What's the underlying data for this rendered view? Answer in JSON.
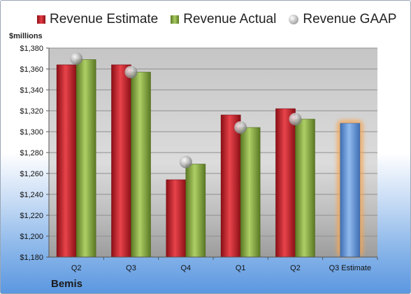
{
  "chart_data": {
    "type": "bar",
    "ylabel": "$millions",
    "ylim": [
      1180,
      1380
    ],
    "yticks": [
      1180,
      1200,
      1220,
      1240,
      1260,
      1280,
      1300,
      1320,
      1340,
      1360,
      1380
    ],
    "ytick_labels": [
      "$1,180",
      "$1,200",
      "$1,220",
      "$1,240",
      "$1,260",
      "$1,280",
      "$1,300",
      "$1,320",
      "$1,340",
      "$1,360",
      "$1,380"
    ],
    "categories": [
      "Q2",
      "Q3",
      "Q4",
      "Q1",
      "Q2",
      "Q3 Estimate"
    ],
    "series": [
      {
        "name": "Revenue Estimate",
        "values": [
          1364,
          1364,
          1254,
          1316,
          1322,
          null
        ]
      },
      {
        "name": "Revenue Actual",
        "values": [
          1369,
          1357,
          1269,
          1304,
          1312,
          1308
        ]
      },
      {
        "name": "Revenue GAAP",
        "values": [
          1370,
          1357,
          1271,
          1304,
          1312,
          null
        ]
      }
    ],
    "legend_position": "top",
    "grid": true,
    "footer": "Bemis",
    "colors": {
      "estimate": "#d9262e",
      "actual": "#9bbb59",
      "gaap": "#c0c0c0",
      "forecast": "#6f9fdc",
      "forecast_glow": "#f5a550"
    }
  }
}
